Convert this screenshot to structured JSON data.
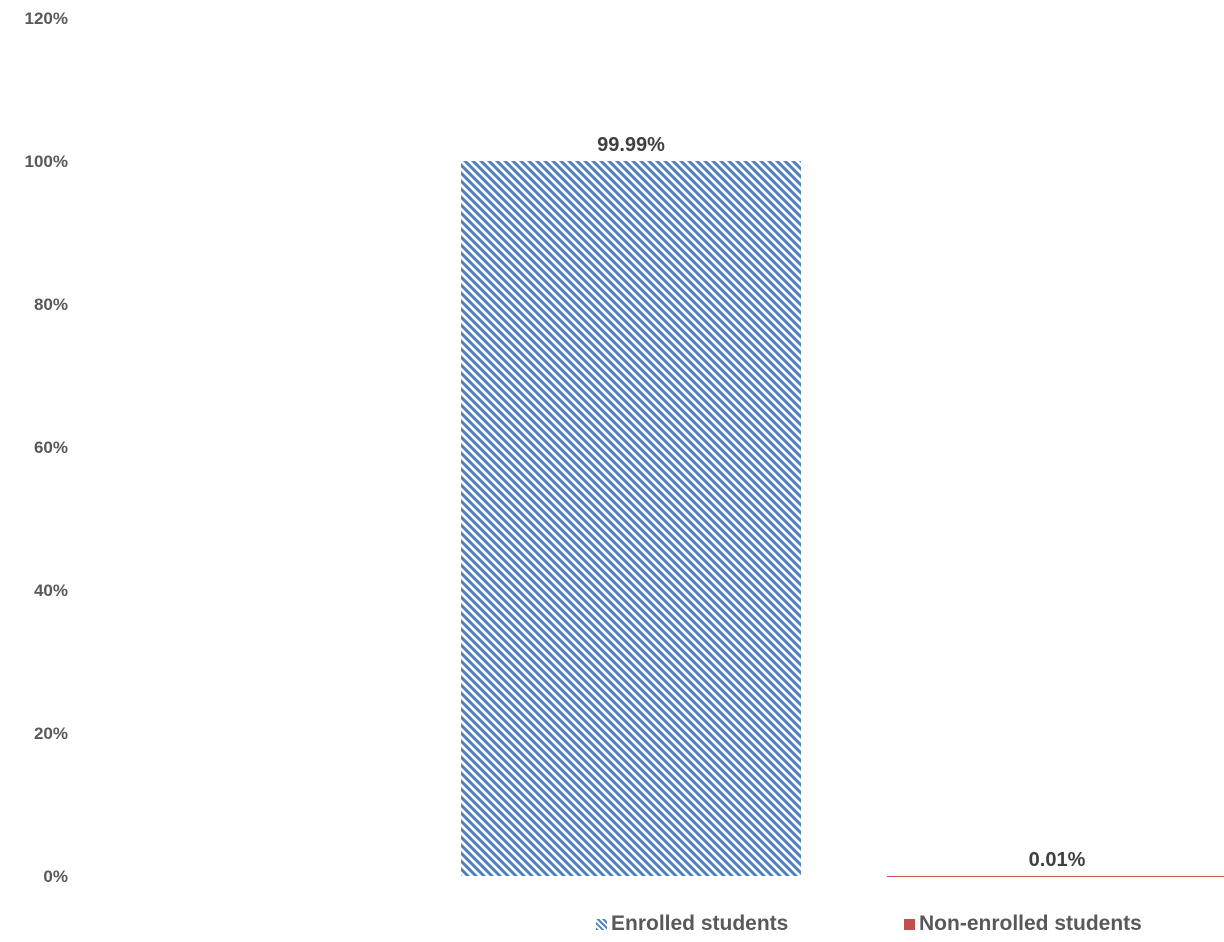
{
  "chart_data": {
    "type": "bar",
    "categories": [
      "Enrolled students",
      "Non-enrolled students"
    ],
    "values": [
      99.99,
      0.01
    ],
    "data_labels": [
      "99.99%",
      "0.01%"
    ],
    "y_ticks": [
      "0%",
      "20%",
      "40%",
      "60%",
      "80%",
      "100%",
      "120%"
    ],
    "ylim": [
      0,
      120
    ],
    "grid": false,
    "legend_position": "bottom-right",
    "colors": {
      "enrolled": "#4f81bd",
      "non_enrolled": "#c0504d",
      "tick_text": "#595959",
      "label_text": "#404040"
    },
    "pattern": {
      "enrolled": "diagonal-hatch",
      "non_enrolled": "solid"
    }
  },
  "legend": {
    "items": [
      {
        "label": "Enrolled students"
      },
      {
        "label": "Non-enrolled students"
      }
    ]
  }
}
